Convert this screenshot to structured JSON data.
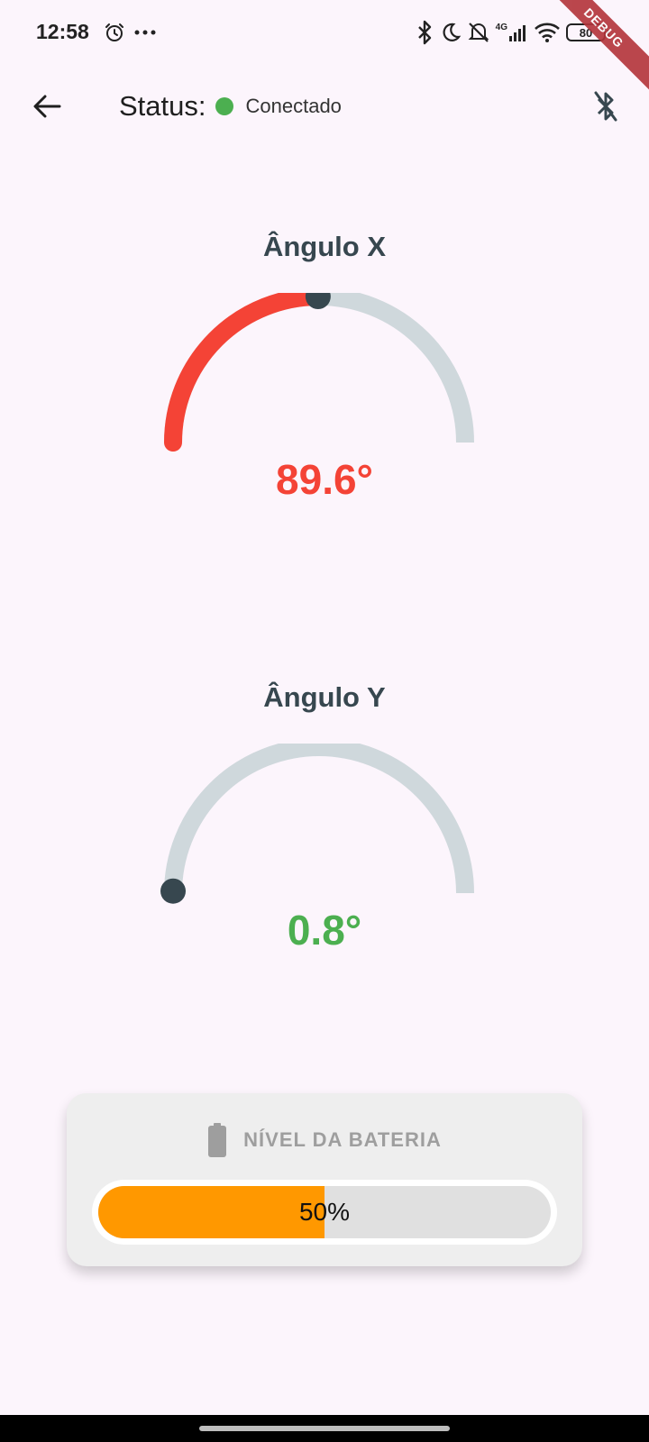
{
  "statusbar": {
    "time": "12:58",
    "signal_label": "4G",
    "battery_level": "80",
    "debug_banner": "DEBUG"
  },
  "appbar": {
    "status_label": "Status:",
    "status_text": "Conectado",
    "status_color": "#4caf50"
  },
  "gauges": [
    {
      "title": "Ângulo X",
      "value_text": "89.6°",
      "value": 89.6,
      "min": 0,
      "max": 180,
      "color": "#f44336"
    },
    {
      "title": "Ângulo Y",
      "value_text": "0.8°",
      "value": 0.8,
      "min": 0,
      "max": 180,
      "color": "#4caf50"
    }
  ],
  "battery": {
    "title": "NÍVEL DA BATERIA",
    "percent": 50,
    "percent_text": "50%",
    "fill_color": "#ff9800"
  },
  "colors": {
    "background": "#fcf5fc",
    "gauge_track": "#cfd8dc",
    "gauge_knob": "#37474f"
  }
}
